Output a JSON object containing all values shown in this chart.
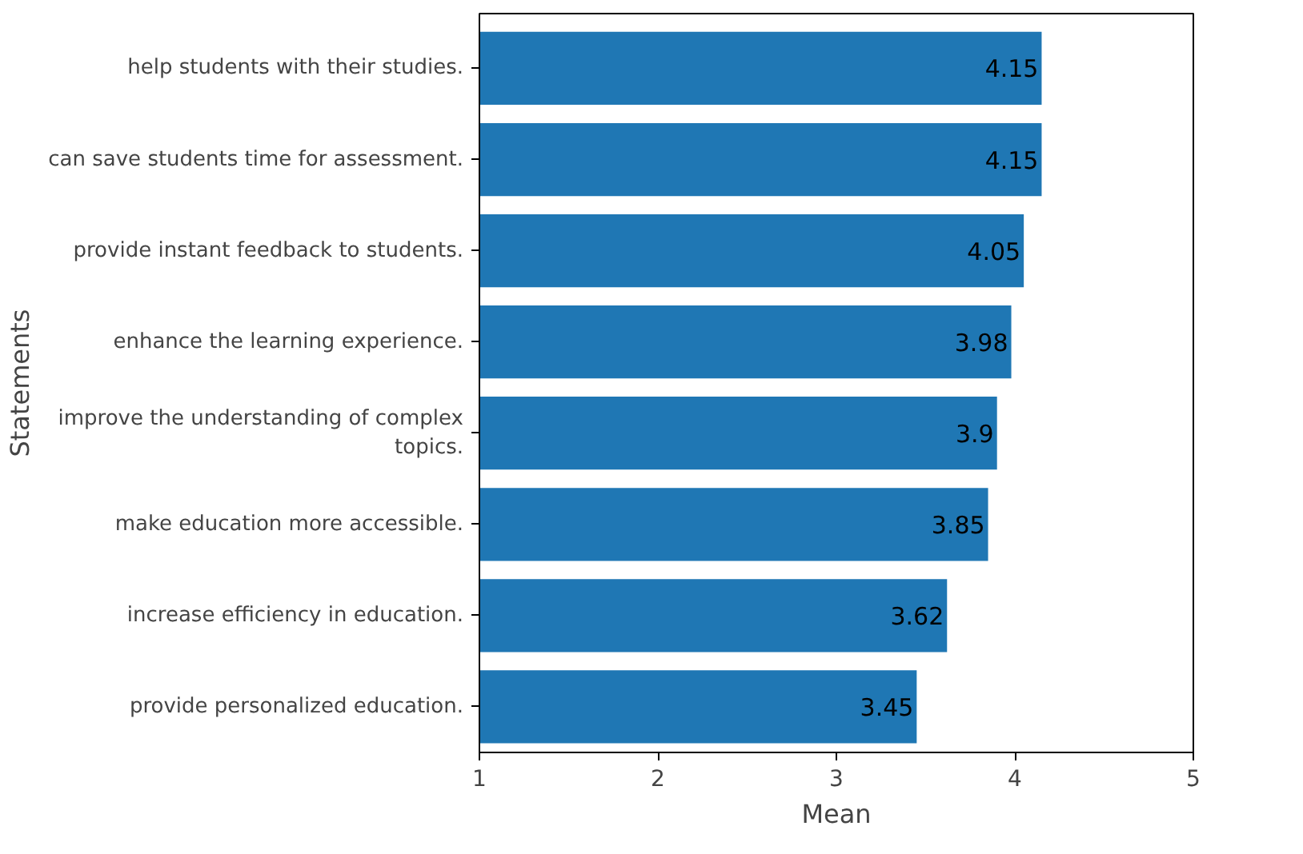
{
  "chart_data": {
    "type": "bar",
    "orientation": "horizontal",
    "xlabel": "Mean",
    "ylabel": "Statements",
    "categories": [
      "help students with their studies.",
      "can save students time for assessment.",
      "provide instant feedback to students.",
      "enhance the learning experience.",
      "improve the understanding of complex topics.",
      "make education more accessible.",
      "increase efficiency in education.",
      "provide personalized education."
    ],
    "values": [
      4.15,
      4.15,
      4.05,
      3.98,
      3.9,
      3.85,
      3.62,
      3.45
    ],
    "color": "#1f77b4",
    "xlim": [
      1,
      5
    ],
    "xticks": [
      1,
      2,
      3,
      4,
      5
    ],
    "data_labels": true,
    "grid": false
  }
}
